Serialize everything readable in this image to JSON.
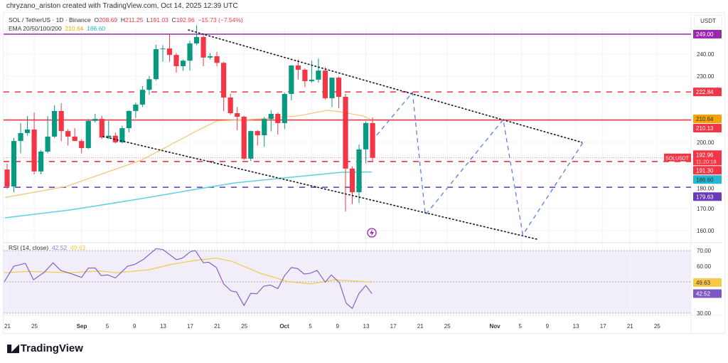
{
  "header": {
    "credit": "chryzano_ariston created with TradingView.com, Oct 14, 2025 12:39 UTC",
    "symbol": "SOL / TetherUS · 1D · Binance",
    "o_label": "O",
    "o": "208.69",
    "h_label": "H",
    "h": "211.25",
    "l_label": "L",
    "l": "191.03",
    "c_label": "C",
    "c": "192.96",
    "change": "−15.73 (−7.54%)",
    "ema_label": "EMA 20/50/100/200",
    "ema_a": "210.64",
    "ema_b": "186.60"
  },
  "currency": "USDT",
  "rsi_legend": {
    "label": "RSI (14, close)",
    "value": "42.52",
    "ma": "49.63"
  },
  "brand": "TradingView",
  "colors": {
    "up": "#089981",
    "down": "#f23645",
    "ema_orange": "#f7c27a",
    "ema_cyan": "#5fd0e0",
    "purple": "#9c27b0",
    "level_purple": "#673ab7",
    "projection": "#5b7fe0",
    "rsi": "#7e57c2",
    "rsi_ma": "#f2c94c"
  },
  "chart_data": {
    "type": "candlestick",
    "symbol": "SOLUSDT",
    "ylim": [
      155,
      253
    ],
    "yticks": [
      160,
      170,
      180,
      190,
      200,
      210,
      220,
      230,
      240
    ],
    "ytick_labels": [
      "160.00",
      "170.00",
      "180.00",
      "",
      "200.00",
      "",
      "",
      "230.00",
      "240.00"
    ],
    "xticks": [
      {
        "day": 0,
        "label": "21"
      },
      {
        "day": 4,
        "label": "25"
      },
      {
        "day": 11,
        "label": "Sep"
      },
      {
        "day": 15,
        "label": "5"
      },
      {
        "day": 19,
        "label": "9"
      },
      {
        "day": 23,
        "label": "13"
      },
      {
        "day": 27,
        "label": "17"
      },
      {
        "day": 31,
        "label": "21"
      },
      {
        "day": 35,
        "label": "25"
      },
      {
        "day": 41,
        "label": "Oct"
      },
      {
        "day": 45,
        "label": "5"
      },
      {
        "day": 49,
        "label": "9"
      },
      {
        "day": 53,
        "label": "13"
      },
      {
        "day": 57,
        "label": "17"
      },
      {
        "day": 61,
        "label": "21"
      },
      {
        "day": 65,
        "label": "25"
      },
      {
        "day": 72,
        "label": "Nov"
      },
      {
        "day": 76,
        "label": "5"
      },
      {
        "day": 80,
        "label": "9"
      },
      {
        "day": 84,
        "label": "13"
      },
      {
        "day": 88,
        "label": "17"
      },
      {
        "day": 92,
        "label": "21"
      },
      {
        "day": 96,
        "label": "25"
      }
    ],
    "ohlc": [
      [
        187.7,
        190.3,
        179,
        180.0
      ],
      [
        180,
        202,
        177.4,
        200.6
      ],
      [
        200.6,
        208.7,
        195,
        204.2
      ],
      [
        204.2,
        211.9,
        203,
        205.8
      ],
      [
        205.8,
        213.5,
        185.5,
        186.8
      ],
      [
        186.8,
        196.5,
        185.5,
        195.8
      ],
      [
        195.8,
        211.9,
        195,
        202.6
      ],
      [
        202.6,
        216.8,
        202,
        214.2
      ],
      [
        214.2,
        217.7,
        200.5,
        205.1
      ],
      [
        205.1,
        206,
        198.5,
        202.6
      ],
      [
        202.6,
        206.4,
        200.5,
        200.6
      ],
      [
        200.6,
        201.5,
        195,
        197.4
      ],
      [
        197.4,
        210.5,
        197,
        209.7
      ],
      [
        209.7,
        212.9,
        209,
        210.6
      ],
      [
        210.6,
        212,
        201.5,
        202.2
      ],
      [
        202.2,
        209.7,
        201.5,
        203
      ],
      [
        203,
        204.5,
        199.5,
        200
      ],
      [
        200,
        207.5,
        199.5,
        206.4
      ],
      [
        206.4,
        214.5,
        204.5,
        214.2
      ],
      [
        214.2,
        218,
        211,
        217.1
      ],
      [
        217.1,
        225.5,
        216,
        223.8
      ],
      [
        223.8,
        230,
        221.5,
        228.6
      ],
      [
        228.6,
        244.2,
        228,
        242.2
      ],
      [
        242.2,
        244,
        236.5,
        242.5
      ],
      [
        242.5,
        249.3,
        236.5,
        239.6
      ],
      [
        239.6,
        240.5,
        231.5,
        234.5
      ],
      [
        234.5,
        237.5,
        232.5,
        237
      ],
      [
        237,
        246,
        232.5,
        244.8
      ],
      [
        244.8,
        253,
        244,
        247.7
      ],
      [
        247.7,
        248.5,
        234.5,
        238.4
      ],
      [
        238.4,
        240.5,
        237.5,
        239
      ],
      [
        239,
        241,
        234.5,
        236
      ],
      [
        236,
        236.5,
        214,
        220.3
      ],
      [
        220.3,
        222,
        212.5,
        213.2
      ],
      [
        213.2,
        216,
        205.5,
        211.6
      ],
      [
        211.6,
        212,
        192,
        192.6
      ],
      [
        192.6,
        205.3,
        191.5,
        205.1
      ],
      [
        205.1,
        205.5,
        198.5,
        203.2
      ],
      [
        203.2,
        211.5,
        198,
        210.6
      ],
      [
        210.6,
        214.5,
        205,
        212.9
      ],
      [
        212.9,
        213.5,
        203.5,
        208.7
      ],
      [
        208.7,
        222.5,
        206,
        221.9
      ],
      [
        221.9,
        235,
        219,
        234.8
      ],
      [
        234.8,
        237.5,
        228.5,
        232.9
      ],
      [
        232.9,
        233.5,
        225,
        227.7
      ],
      [
        227.7,
        237,
        227,
        228.4
      ],
      [
        228.4,
        238,
        227,
        232.5
      ],
      [
        232.5,
        234,
        219.5,
        220
      ],
      [
        220,
        229.3,
        216,
        229.3
      ],
      [
        229.3,
        229.8,
        215.5,
        220.6
      ],
      [
        220.6,
        222,
        168.7,
        188.1
      ],
      [
        188.1,
        189,
        172,
        177.4
      ],
      [
        177.4,
        199,
        172.5,
        196.8
      ],
      [
        196.8,
        209.5,
        190.5,
        208.7
      ],
      [
        208.69,
        211.25,
        191.03,
        192.96
      ]
    ],
    "ema_orange": [
      [
        -0.3,
        175
      ],
      [
        8.7,
        180
      ],
      [
        19.9,
        192
      ],
      [
        28.4,
        205.8
      ],
      [
        31,
        209.7
      ],
      [
        35.7,
        210.3
      ],
      [
        43.1,
        212
      ],
      [
        47.3,
        214.5
      ],
      [
        48.8,
        214
      ],
      [
        52.5,
        212
      ],
      [
        53.6,
        210.6
      ]
    ],
    "ema_cyan": [
      [
        -0.3,
        165.8
      ],
      [
        9.5,
        169.4
      ],
      [
        19.9,
        174.5
      ],
      [
        27.3,
        178.4
      ],
      [
        33.6,
        181.6
      ],
      [
        41,
        183.9
      ],
      [
        49.4,
        186.4
      ],
      [
        53.9,
        186.6
      ]
    ],
    "levels": [
      {
        "price": 249.0,
        "label": "249.00",
        "style": "solid",
        "color": "#9c27b0"
      },
      {
        "price": 222.84,
        "label": "222.84",
        "style": "dashed",
        "color": "#f23645"
      },
      {
        "price": 210.13,
        "label": "210.13",
        "style": "solid",
        "color": "#f23645"
      },
      {
        "price": 191.3,
        "label": "191.30",
        "style": "dashed",
        "color": "#f23645"
      },
      {
        "price": 179.63,
        "label": "179.63",
        "style": "dashed",
        "color": "#673ab7"
      }
    ],
    "price_badges": [
      {
        "price": 249.0,
        "label": "249.00",
        "color": "#9c27b0"
      },
      {
        "price": 222.84,
        "label": "222.84",
        "color": "#f23645"
      },
      {
        "price": 210.64,
        "label": "210.64",
        "color": "#f7a400",
        "text": "#333"
      },
      {
        "price": 210.13,
        "label": "210.13",
        "color": "#f23645"
      },
      {
        "price": 191.3,
        "label": "191.30",
        "color": "#f23645"
      },
      {
        "price": 186.6,
        "label": "186.60",
        "color": "#22b8cf",
        "text": "#333"
      },
      {
        "price": 179.63,
        "label": "179.63",
        "color": "#673ab7"
      }
    ],
    "last_price": {
      "price": 192.96,
      "label": "192.96",
      "countdown": "11:20:18",
      "symbol_tag": "SOLUSDT"
    },
    "trendlines": [
      {
        "name": "upper-trendline",
        "points": [
          [
            26.8,
            250.9
          ],
          [
            84.9,
            200.0
          ]
        ]
      },
      {
        "name": "lower-trendline",
        "points": [
          [
            14.2,
            202.6
          ],
          [
            78.3,
            156.1
          ]
        ]
      }
    ],
    "projection": [
      [
        54.6,
        203.2
      ],
      [
        59.9,
        222.6
      ],
      [
        61.8,
        167.1
      ],
      [
        73.3,
        210.3
      ],
      [
        76.2,
        158.1
      ],
      [
        85.1,
        200.0
      ]
    ],
    "rsi": {
      "ylim": [
        30,
        70
      ],
      "yticks": [
        {
          "v": 70,
          "label": "70.00"
        },
        {
          "v": 60,
          "label": "60.00"
        },
        {
          "v": 30,
          "label": "30.00"
        }
      ],
      "bands": [
        70,
        50,
        30
      ],
      "values": [
        [
          -0.4,
          50.2
        ],
        [
          1,
          60
        ],
        [
          2.7,
          61.8
        ],
        [
          3.9,
          51.3
        ],
        [
          5.5,
          56.2
        ],
        [
          6.8,
          62.2
        ],
        [
          7.9,
          57.3
        ],
        [
          9.6,
          55
        ],
        [
          11,
          52.8
        ],
        [
          12,
          58.8
        ],
        [
          13,
          58.9
        ],
        [
          13.9,
          54
        ],
        [
          14.9,
          54.4
        ],
        [
          16,
          52.5
        ],
        [
          17.8,
          60
        ],
        [
          18.9,
          61.2
        ],
        [
          20.2,
          64.5
        ],
        [
          22,
          71.2
        ],
        [
          23,
          70.7
        ],
        [
          25,
          64.2
        ],
        [
          25.9,
          65.2
        ],
        [
          27.1,
          69.3
        ],
        [
          27.8,
          70
        ],
        [
          29,
          62.2
        ],
        [
          29.8,
          62.5
        ],
        [
          30.9,
          59.2
        ],
        [
          32,
          48.7
        ],
        [
          33.1,
          44.2
        ],
        [
          33.9,
          43.5
        ],
        [
          35,
          34.9
        ],
        [
          36,
          42.7
        ],
        [
          36.9,
          42.4
        ],
        [
          37.9,
          47.2
        ],
        [
          38.9,
          48
        ],
        [
          40,
          45.7
        ],
        [
          41,
          54
        ],
        [
          42,
          59.2
        ],
        [
          42.9,
          58.5
        ],
        [
          43.9,
          55
        ],
        [
          44.8,
          55.5
        ],
        [
          45.8,
          57.3
        ],
        [
          47,
          49.8
        ],
        [
          47.9,
          54.4
        ],
        [
          49.1,
          49.5
        ],
        [
          50.1,
          36.3
        ],
        [
          51,
          33
        ],
        [
          52,
          42.7
        ],
        [
          53,
          47.7
        ],
        [
          53.9,
          42.5
        ]
      ],
      "ma": [
        [
          -0.4,
          55.8
        ],
        [
          3.1,
          56.7
        ],
        [
          9.2,
          55.8
        ],
        [
          13.7,
          57
        ],
        [
          16.1,
          55.8
        ],
        [
          20.9,
          57.7
        ],
        [
          24.3,
          61.2
        ],
        [
          27.8,
          63.7
        ],
        [
          30.9,
          65.2
        ],
        [
          33.3,
          63
        ],
        [
          37.4,
          55.5
        ],
        [
          41.5,
          50.2
        ],
        [
          44.9,
          48.7
        ],
        [
          48.4,
          51.3
        ],
        [
          53.9,
          49.8
        ]
      ],
      "badges": [
        {
          "v": 49.63,
          "label": "49.63",
          "color": "#f7c948",
          "text": "#333"
        },
        {
          "v": 42.52,
          "label": "42.52",
          "color": "#7e57c2",
          "text": "#fff"
        }
      ]
    }
  }
}
